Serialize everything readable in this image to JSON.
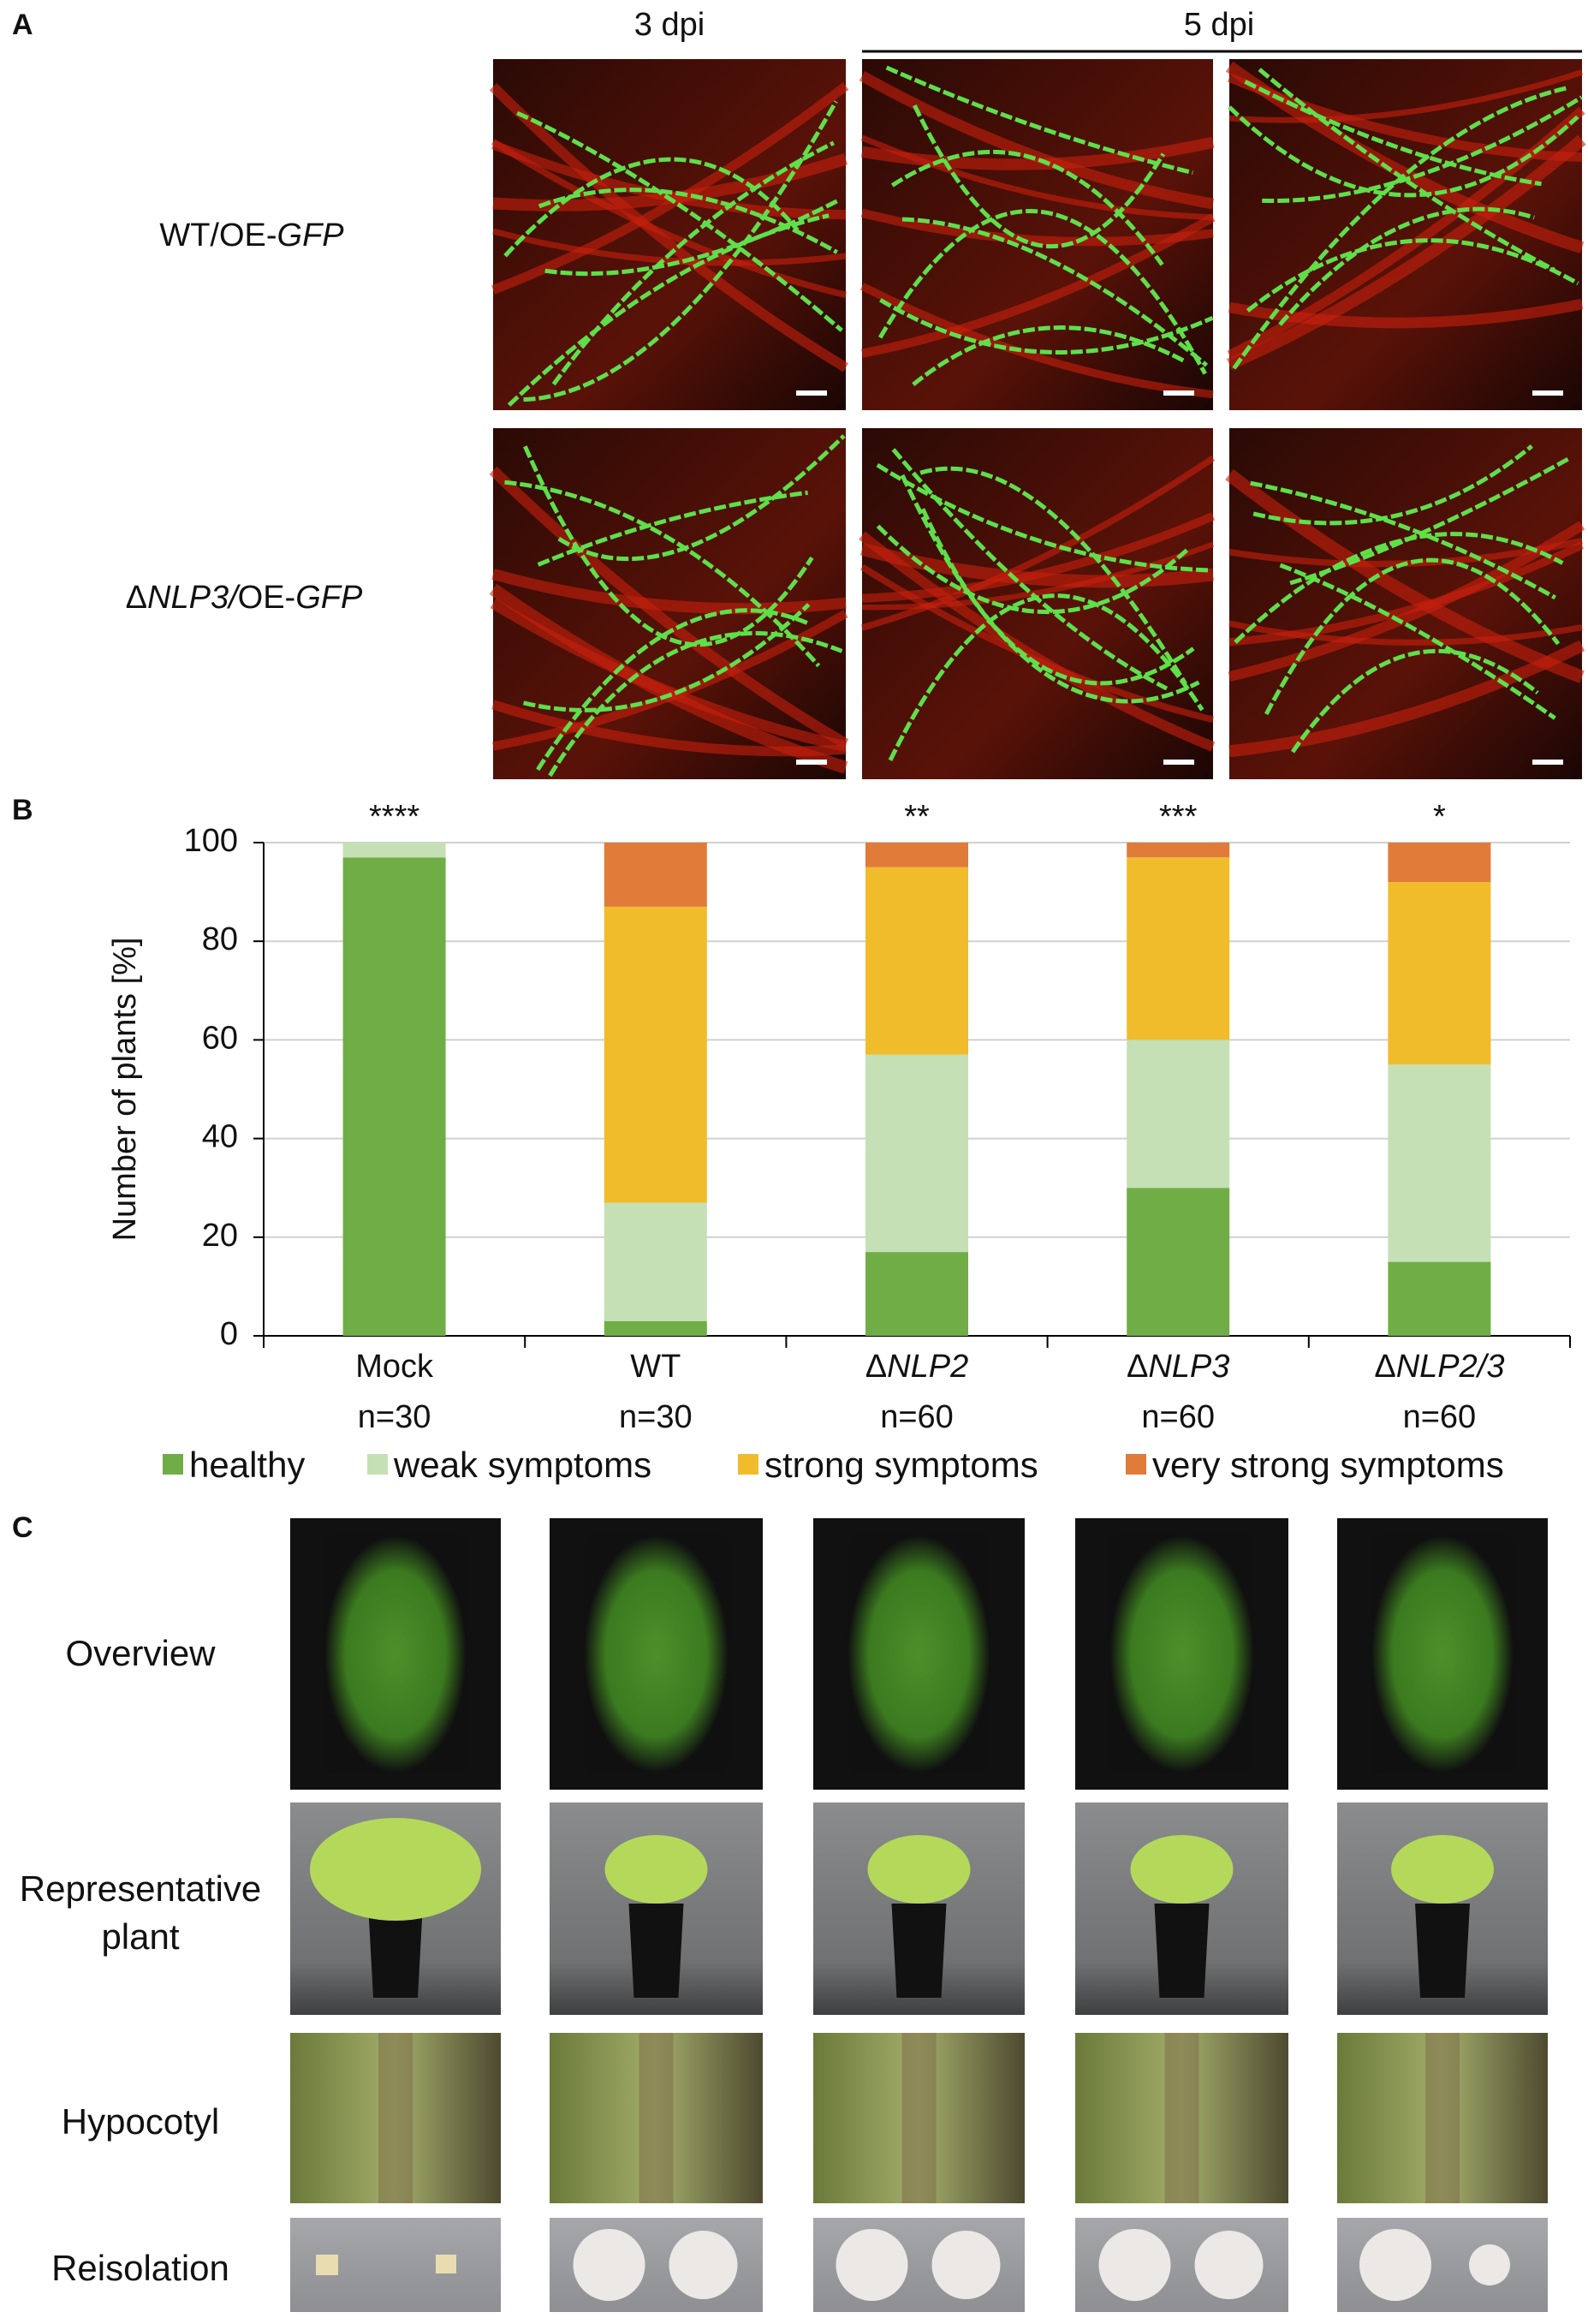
{
  "panel_letters": [
    "A",
    "B",
    "C"
  ],
  "panel_a": {
    "column_headers": [
      "3 dpi",
      "5 dpi"
    ],
    "rows": [
      [
        {
          "text": "WT/OE-"
        },
        {
          "text": "GFP",
          "italic": true
        }
      ],
      [
        {
          "text": "Δ"
        },
        {
          "text": "NLP3/",
          "italic": true
        },
        {
          "text": "OE-"
        },
        {
          "text": "GFP",
          "italic": true
        }
      ]
    ]
  },
  "chart_data": {
    "type": "stacked-bar",
    "ylabel": "Number of plants [%]",
    "categories": [
      "Mock",
      "WT",
      "ΔNLP2",
      "ΔNLP3",
      "ΔNLP2/3"
    ],
    "category_italic_tail": [
      false,
      false,
      true,
      true,
      true
    ],
    "sample_sizes": [
      "n=30",
      "n=30",
      "n=60",
      "n=60",
      "n=60"
    ],
    "significance": [
      "****",
      null,
      "**",
      "***",
      "*"
    ],
    "series": [
      {
        "name": "healthy",
        "color": "#70ad47",
        "values": [
          97,
          3,
          17,
          30,
          15
        ]
      },
      {
        "name": "weak symptoms",
        "color": "#c5e0b4",
        "values": [
          3,
          24,
          40,
          30,
          40
        ]
      },
      {
        "name": "strong symptoms",
        "color": "#f0bc2c",
        "values": [
          0,
          60,
          38,
          37,
          37
        ]
      },
      {
        "name": "very strong symptoms",
        "color": "#e07b39",
        "values": [
          0,
          13,
          5,
          3,
          8
        ]
      }
    ],
    "ylim": [
      0,
      100
    ],
    "yticks": [
      0,
      20,
      40,
      60,
      80,
      100
    ],
    "grid": true,
    "legend": "bottom"
  },
  "panel_c": {
    "rows": [
      [
        "Overview"
      ],
      [
        "Representative",
        "plant"
      ],
      [
        "Hypocotyl"
      ],
      [
        "Reisolation"
      ]
    ]
  }
}
